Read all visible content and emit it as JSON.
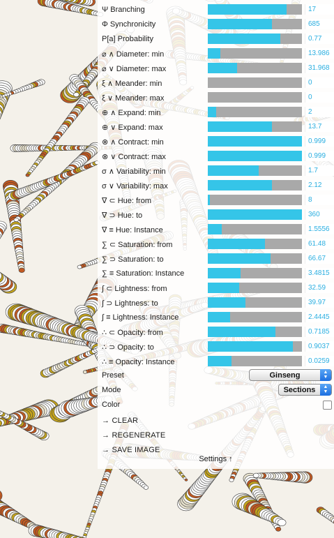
{
  "sliders": [
    {
      "label": "Ψ Branching",
      "value": "17",
      "fill": 0.84
    },
    {
      "label": "Φ Synchronicity",
      "value": "685",
      "fill": 0.68
    },
    {
      "label": "P[a] Probability",
      "value": "0.77",
      "fill": 0.77
    },
    {
      "label": "⌀ ∧ Diameter: min",
      "value": "13.986",
      "fill": 0.13
    },
    {
      "label": "⌀ ∨ Diameter: max",
      "value": "31.968",
      "fill": 0.31
    },
    {
      "label": "ξ ∧ Meander: min",
      "value": "0",
      "fill": 0.0
    },
    {
      "label": "ξ ∨ Meander: max",
      "value": "0",
      "fill": 0.0
    },
    {
      "label": "⊕ ∧ Expand: min",
      "value": "2",
      "fill": 0.09
    },
    {
      "label": "⊕ ∨ Expand: max",
      "value": "13.7",
      "fill": 0.68
    },
    {
      "label": "⊗ ∧ Contract: min",
      "value": "0.999",
      "fill": 1.0
    },
    {
      "label": "⊗ ∨ Contract: max",
      "value": "0.999",
      "fill": 1.0
    },
    {
      "label": "σ ∧ Variability: min",
      "value": "1.7",
      "fill": 0.54
    },
    {
      "label": "σ ∨ Variability: max",
      "value": "2.12",
      "fill": 0.68
    },
    {
      "label": "∇ ⊂ Hue: from",
      "value": "8",
      "fill": 0.02
    },
    {
      "label": "∇ ⊃ Hue: to",
      "value": "360",
      "fill": 1.0
    },
    {
      "label": "∇ ≡ Hue: Instance",
      "value": "1.5556",
      "fill": 0.15
    },
    {
      "label": "∑ ⊂ Saturation: from",
      "value": "61.48",
      "fill": 0.61
    },
    {
      "label": "∑ ⊃ Saturation: to",
      "value": "66.67",
      "fill": 0.67
    },
    {
      "label": "∑ ≡ Saturation: Instance",
      "value": "3.4815",
      "fill": 0.35
    },
    {
      "label": "∫ ⊂ Lightness: from",
      "value": "32.59",
      "fill": 0.33
    },
    {
      "label": "∫ ⊃ Lightness: to",
      "value": "39.97",
      "fill": 0.4
    },
    {
      "label": "∫ ≡ Lightness: Instance",
      "value": "2.4445",
      "fill": 0.24
    },
    {
      "label": "∴ ⊂ Opacity: from",
      "value": "0.7185",
      "fill": 0.72
    },
    {
      "label": "∴ ⊃ Opacity: to",
      "value": "0.9037",
      "fill": 0.9
    },
    {
      "label": "∴ ≡ Opacity: Instance",
      "value": "0.0259",
      "fill": 0.25
    }
  ],
  "preset": {
    "label": "Preset",
    "selected": "Ginseng"
  },
  "mode": {
    "label": "Mode",
    "selected": "Sections"
  },
  "color": {
    "label": "Color",
    "checked": false
  },
  "actions": {
    "clear": "→ CLEAR",
    "regenerate": "→ REGENERATE",
    "save_image": "→ SAVE IMAGE"
  },
  "settings_toggle": "Settings ↑",
  "colors": {
    "accent": "#35c5e8",
    "track": "#a9a9a9",
    "value_text": "#2aaee0",
    "petal_orange": "#c25a22",
    "petal_gold": "#c4a41e",
    "petal_white": "#ffffff"
  }
}
